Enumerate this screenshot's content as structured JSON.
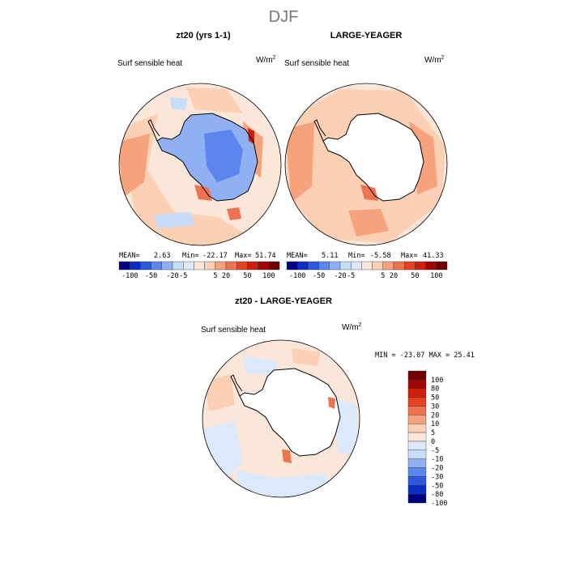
{
  "page_title": "DJF",
  "palette": [
    "#000080",
    "#0a2ec4",
    "#2d58e0",
    "#5c86ee",
    "#8fb0f2",
    "#c7dcf8",
    "#dbe9fb",
    "#fbe7d9",
    "#fcd0b4",
    "#f6a37d",
    "#ef7351",
    "#e54222",
    "#cf1e0b",
    "#9e0503",
    "#6f0000"
  ],
  "map_colors": {
    "ocean_pale": "#fbe7d9",
    "ocean_light": "#fcd0b4",
    "ocean_mid": "#f6a37d",
    "ocean_hot": "#ef7351",
    "ocean_very_hot": "#cf1e0b",
    "ice_blue": "#8fb0f2",
    "ice_blue_light": "#c7dcf8",
    "ice_blue_dark": "#5c86ee",
    "land_white": "#ffffff",
    "diff_blue": "#dbe9fb"
  },
  "chart_data": [
    {
      "type": "heatmap",
      "title": "zt20 (yrs 1-1)",
      "variable": "Surf sensible heat",
      "units": "W/m",
      "units_exp": "2",
      "stats": {
        "mean_label": "MEAN=",
        "mean": "2.63",
        "min_label": "Min=",
        "min": "-22.17",
        "max_label": "Max=",
        "max": "51.74"
      },
      "colorbar_ticks": [
        "-100",
        "-50",
        "-20",
        "-5",
        "5",
        "20",
        "50",
        "100"
      ]
    },
    {
      "type": "heatmap",
      "title": "LARGE-YEAGER",
      "variable": "Surf sensible heat",
      "units": "W/m",
      "units_exp": "2",
      "stats": {
        "mean_label": "MEAN=",
        "mean": "5.11",
        "min_label": "Min=",
        "min": "-5.58",
        "max_label": "Max=",
        "max": "41.33"
      },
      "colorbar_ticks": [
        "-100",
        "-50",
        "-20",
        "-5",
        "5",
        "20",
        "50",
        "100"
      ]
    },
    {
      "type": "heatmap",
      "title": "zt20 - LARGE-YEAGER",
      "variable": "Surf sensible heat",
      "units": "W/m",
      "units_exp": "2",
      "stats_text": "MIN = -23.07 MAX =  25.41",
      "colorbar_ticks": [
        "100",
        "80",
        "50",
        "30",
        "20",
        "10",
        "5",
        "0",
        "-5",
        "-10",
        "-20",
        "-30",
        "-50",
        "-80",
        "-100"
      ]
    }
  ]
}
